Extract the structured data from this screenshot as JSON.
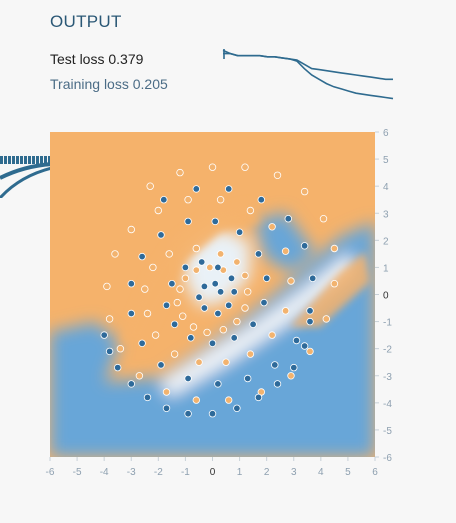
{
  "output": {
    "title": "OUTPUT",
    "test_loss_label": "Test loss",
    "test_loss_value": "0.379",
    "train_loss_label": "Training loss",
    "train_loss_value": "0.205"
  },
  "colors": {
    "orange": "#f5b26b",
    "blue": "#67a6d8",
    "white": "#f4f6f8",
    "point_blue": "#2e6a9a",
    "point_orange": "#f2b36f",
    "loss_line": "#2f6b8f"
  },
  "chart_data": {
    "type": "heatmap",
    "x_ticks": [
      "-6",
      "-5",
      "-4",
      "-3",
      "-2",
      "-1",
      "0",
      "1",
      "2",
      "3",
      "4",
      "5",
      "6"
    ],
    "y_ticks": [
      "6",
      "5",
      "4",
      "3",
      "2",
      "1",
      "0",
      "-1",
      "-2",
      "-3",
      "-4",
      "-5",
      "-6"
    ],
    "xlim": [
      -6,
      6
    ],
    "ylim": [
      -6,
      6
    ],
    "description": "",
    "series": [
      {
        "class": "positive",
        "points": [
          [
            0.4,
            0.9
          ],
          [
            -0.1,
            1.0
          ],
          [
            -0.6,
            0.9
          ],
          [
            -1.0,
            0.6
          ],
          [
            -1.2,
            0.2
          ],
          [
            -1.3,
            -0.3
          ],
          [
            -1.1,
            -0.8
          ],
          [
            -0.7,
            -1.2
          ],
          [
            -0.2,
            -1.4
          ],
          [
            0.4,
            -1.3
          ],
          [
            0.9,
            -1.0
          ],
          [
            1.2,
            -0.5
          ],
          [
            1.3,
            0.1
          ],
          [
            1.2,
            0.7
          ],
          [
            0.9,
            1.2
          ],
          [
            0.3,
            1.5
          ],
          [
            -0.6,
            1.7
          ],
          [
            -1.6,
            1.5
          ],
          [
            -2.2,
            1.0
          ],
          [
            -2.5,
            0.2
          ],
          [
            -2.4,
            -0.7
          ],
          [
            -2.1,
            -1.5
          ],
          [
            -1.4,
            -2.2
          ],
          [
            -0.5,
            -2.5
          ],
          [
            0.5,
            -2.5
          ],
          [
            1.4,
            -2.2
          ],
          [
            2.2,
            -1.5
          ],
          [
            2.7,
            -0.6
          ],
          [
            2.9,
            0.5
          ],
          [
            2.7,
            1.6
          ],
          [
            2.2,
            2.5
          ],
          [
            1.4,
            3.1
          ],
          [
            0.3,
            3.5
          ],
          [
            -0.9,
            3.5
          ],
          [
            -2.0,
            3.1
          ],
          [
            -3.0,
            2.4
          ],
          [
            -3.6,
            1.5
          ],
          [
            -3.9,
            0.3
          ],
          [
            -3.8,
            -0.9
          ],
          [
            -3.4,
            -2.0
          ],
          [
            -2.7,
            -3.0
          ],
          [
            -1.7,
            -3.6
          ],
          [
            -0.6,
            -3.9
          ],
          [
            0.6,
            -3.9
          ],
          [
            1.8,
            -3.6
          ],
          [
            2.9,
            -3.0
          ],
          [
            3.6,
            -2.1
          ],
          [
            4.2,
            -0.9
          ],
          [
            4.5,
            0.4
          ],
          [
            4.5,
            1.7
          ],
          [
            4.1,
            2.8
          ],
          [
            3.4,
            3.8
          ],
          [
            2.4,
            4.4
          ],
          [
            1.2,
            4.7
          ],
          [
            0.0,
            4.7
          ],
          [
            -1.2,
            4.5
          ],
          [
            -2.3,
            4.0
          ]
        ]
      },
      {
        "class": "negative",
        "points": [
          [
            0.3,
            0.1
          ],
          [
            0.1,
            0.4
          ],
          [
            -0.3,
            0.3
          ],
          [
            -0.5,
            -0.1
          ],
          [
            -0.3,
            -0.5
          ],
          [
            0.2,
            -0.7
          ],
          [
            0.6,
            -0.4
          ],
          [
            0.8,
            0.1
          ],
          [
            0.7,
            0.6
          ],
          [
            0.2,
            1.0
          ],
          [
            -0.4,
            1.2
          ],
          [
            -1.0,
            1.0
          ],
          [
            -1.5,
            0.4
          ],
          [
            -1.7,
            -0.4
          ],
          [
            -1.4,
            -1.1
          ],
          [
            -0.8,
            -1.6
          ],
          [
            0.0,
            -1.8
          ],
          [
            0.8,
            -1.6
          ],
          [
            1.5,
            -1.1
          ],
          [
            1.9,
            -0.3
          ],
          [
            2.0,
            0.6
          ],
          [
            1.7,
            1.5
          ],
          [
            1.0,
            2.3
          ],
          [
            0.1,
            2.7
          ],
          [
            -0.9,
            2.7
          ],
          [
            -1.9,
            2.2
          ],
          [
            -2.6,
            1.4
          ],
          [
            -3.0,
            0.4
          ],
          [
            -3.0,
            -0.7
          ],
          [
            -2.6,
            -1.8
          ],
          [
            -1.9,
            -2.6
          ],
          [
            -0.9,
            -3.1
          ],
          [
            0.2,
            -3.3
          ],
          [
            1.3,
            -3.1
          ],
          [
            2.3,
            -2.6
          ],
          [
            3.1,
            -1.7
          ],
          [
            3.6,
            -0.6
          ],
          [
            3.7,
            0.6
          ],
          [
            3.4,
            1.8
          ],
          [
            2.8,
            2.8
          ],
          [
            1.8,
            3.5
          ],
          [
            0.6,
            3.9
          ],
          [
            -0.6,
            3.9
          ],
          [
            -1.8,
            3.5
          ],
          [
            -4.0,
            -1.5
          ],
          [
            -3.8,
            -2.1
          ],
          [
            -3.5,
            -2.7
          ],
          [
            -3.0,
            -3.3
          ],
          [
            -2.4,
            -3.8
          ],
          [
            -1.7,
            -4.2
          ],
          [
            -0.9,
            -4.4
          ],
          [
            0.0,
            -4.4
          ],
          [
            0.9,
            -4.2
          ],
          [
            1.7,
            -3.8
          ],
          [
            2.4,
            -3.3
          ],
          [
            3.0,
            -2.7
          ],
          [
            3.4,
            -1.9
          ],
          [
            3.6,
            -1.0
          ]
        ]
      }
    ]
  },
  "loss_chart": {
    "test": [
      0.62,
      0.62,
      0.6,
      0.6,
      0.6,
      0.6,
      0.59,
      0.59,
      0.58,
      0.57,
      0.56,
      0.52,
      0.48,
      0.47,
      0.46,
      0.45,
      0.44,
      0.43,
      0.42,
      0.41,
      0.4,
      0.39,
      0.38,
      0.38
    ],
    "train": [
      0.65,
      0.62,
      0.6,
      0.6,
      0.6,
      0.6,
      0.59,
      0.59,
      0.58,
      0.57,
      0.55,
      0.48,
      0.42,
      0.38,
      0.34,
      0.31,
      0.29,
      0.27,
      0.25,
      0.24,
      0.23,
      0.22,
      0.21,
      0.2
    ]
  }
}
